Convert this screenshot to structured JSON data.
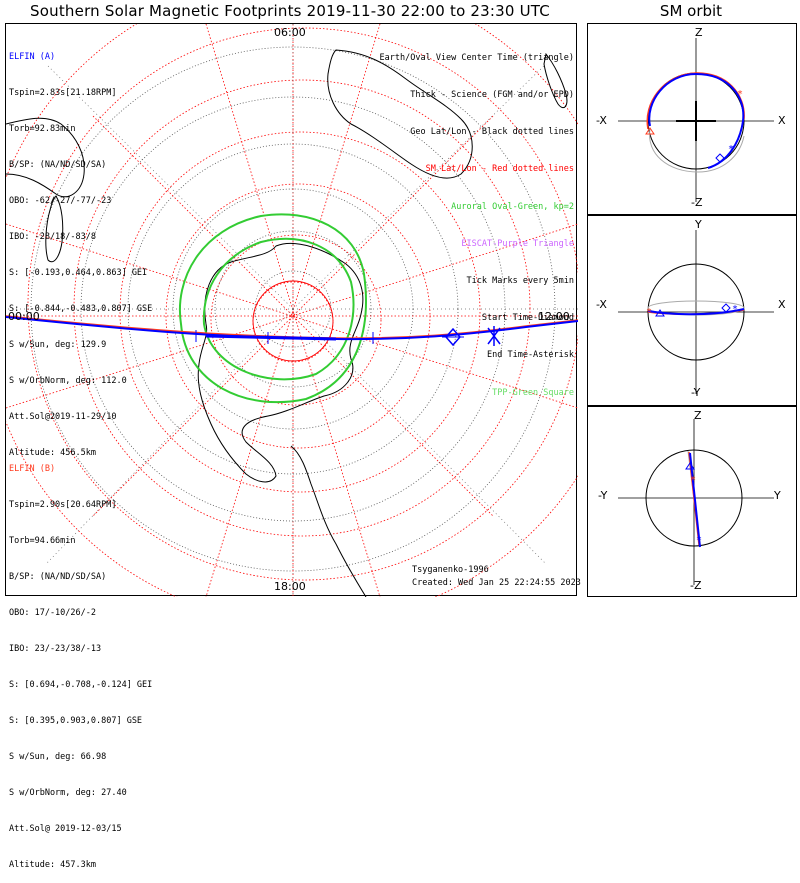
{
  "title": "Southern Solar Magnetic Footprints 2019-11-30 22:00 to 23:30 UTC",
  "sm_title": "SM orbit",
  "map": {
    "top_label": "06:00",
    "bottom_label": "18:00",
    "left_label": "00:00",
    "right_label": "12:00"
  },
  "elfin_a": {
    "name": "ELFIN (A)",
    "color": "#0000ff",
    "lines": [
      "Tspin=2.83s[21.18RPM]",
      "Torb=92.83min",
      "B/SP: (NA/ND/SD/SA)",
      "OBO: -62/-27/-77/-23",
      "IBO: -28/18/-83/8",
      "S: [-0.193,0.464,0.863] GEI",
      "S: [-0.844,-0.483,0.807] GSE",
      "S w/Sun, deg: 129.9",
      "S w/OrbNorm, deg: 112.0",
      "Att.Sol@2019-11-29/10",
      "Altitude: 456.5km"
    ]
  },
  "elfin_b": {
    "name": "ELFIN (B)",
    "color": "#ff3b1f",
    "lines": [
      "Tspin=2.90s[20.64RPM]",
      "Torb=94.66min",
      "B/SP: (NA/ND/SD/SA)",
      "OBO: 17/-10/26/-2",
      "IBO: 23/-23/38/-13",
      "S: [0.694,-0.708,-0.124] GEI",
      "S: [0.395,0.903,0.807] GSE",
      "S w/Sun, deg: 66.98",
      "S w/OrbNorm, deg: 27.40",
      "Att.Sol@ 2019-12-03/15",
      "Altitude: 457.3km"
    ]
  },
  "legend": [
    {
      "text": "Earth/Oval View Center Time (triangle)",
      "color": "#000000"
    },
    {
      "text": "Thick - Science (FGM and/or EPD)",
      "color": "#000000"
    },
    {
      "text": "Geo Lat/Lon - Black dotted lines",
      "color": "#000000"
    },
    {
      "text": "SM Lat/Lon - Red dotted lines",
      "color": "#ff0000"
    },
    {
      "text": "Auroral Oval-Green, kp=2",
      "color": "#33cc33"
    },
    {
      "text": "EISCAT-Purple Triangle",
      "color": "#cc66ff"
    },
    {
      "text": "Tick Marks every 5min",
      "color": "#000000"
    },
    {
      "text": "Start Time-Diamond",
      "color": "#000000"
    },
    {
      "text": "End Time-Asterisk",
      "color": "#000000"
    },
    {
      "text": "TPP-Green Square",
      "color": "#66dd66"
    }
  ],
  "footer": {
    "author": "Tsyganenko-1996",
    "created": "Created: Wed Jan 25 22:24:55 2023"
  },
  "panels": {
    "p1": {
      "top": "Z",
      "bottom": "-Z",
      "left": "-X",
      "right": "X"
    },
    "p2": {
      "top": "Y",
      "bottom": "-Y",
      "left": "-X",
      "right": "X"
    },
    "p3": {
      "top": "Z",
      "bottom": "-Z",
      "left": "-Y",
      "right": "Y"
    }
  },
  "colors": {
    "elfin_a": "#0000ff",
    "elfin_b": "#ff3b1f",
    "sm_grid": "#ff0000",
    "oval": "#33cc33"
  }
}
